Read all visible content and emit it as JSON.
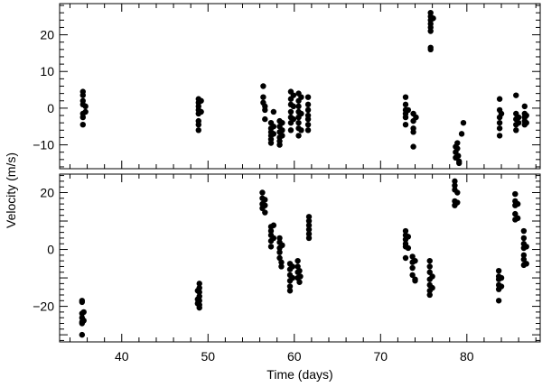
{
  "chart_data": {
    "type": "scatter",
    "xlabel": "Time (days)",
    "ylabel": "Velocity (m/s)",
    "x_ticks": [
      40,
      50,
      60,
      70,
      80
    ],
    "xlim": [
      32.8,
      88.5
    ],
    "panels": [
      {
        "name": "top",
        "ylim": [
          -16.5,
          28.5
        ],
        "y_ticks": [
          -10,
          0,
          10,
          20
        ],
        "points": [
          [
            35.5,
            4.5
          ],
          [
            35.5,
            3.5
          ],
          [
            35.5,
            2.0
          ],
          [
            35.5,
            1.0
          ],
          [
            35.5,
            -1.5
          ],
          [
            35.5,
            -2.5
          ],
          [
            35.5,
            -4.5
          ],
          [
            35.8,
            0.5
          ],
          [
            35.8,
            -1.0
          ],
          [
            48.9,
            2.5
          ],
          [
            48.9,
            1.5
          ],
          [
            48.9,
            0.5
          ],
          [
            48.9,
            -0.5
          ],
          [
            48.9,
            -1.5
          ],
          [
            48.9,
            -3.5
          ],
          [
            48.9,
            -4.5
          ],
          [
            48.9,
            -6.0
          ],
          [
            49.2,
            2.0
          ],
          [
            49.2,
            -1.0
          ],
          [
            56.4,
            6.0
          ],
          [
            56.4,
            3.0
          ],
          [
            56.4,
            1.5
          ],
          [
            56.6,
            0.5
          ],
          [
            56.6,
            -0.5
          ],
          [
            56.6,
            -3.0
          ],
          [
            57.3,
            -4.0
          ],
          [
            57.3,
            -5.5
          ],
          [
            57.3,
            -6.5
          ],
          [
            57.3,
            -7.5
          ],
          [
            57.3,
            -8.5
          ],
          [
            57.3,
            -9.5
          ],
          [
            57.6,
            -1.0
          ],
          [
            57.6,
            -5.0
          ],
          [
            57.6,
            -7.0
          ],
          [
            58.3,
            -3.5
          ],
          [
            58.3,
            -5.0
          ],
          [
            58.3,
            -6.5
          ],
          [
            58.3,
            -8.0
          ],
          [
            58.3,
            -9.0
          ],
          [
            58.3,
            -10.0
          ],
          [
            58.6,
            -4.0
          ],
          [
            58.6,
            -6.0
          ],
          [
            58.6,
            -7.5
          ],
          [
            59.6,
            4.5
          ],
          [
            59.6,
            2.5
          ],
          [
            59.6,
            1.0
          ],
          [
            59.6,
            -1.0
          ],
          [
            59.6,
            -2.5
          ],
          [
            59.6,
            -4.0
          ],
          [
            59.6,
            -6.0
          ],
          [
            59.9,
            3.5
          ],
          [
            59.9,
            0.5
          ],
          [
            59.9,
            -3.0
          ],
          [
            60.5,
            4.0
          ],
          [
            60.5,
            2.0
          ],
          [
            60.5,
            0.5
          ],
          [
            60.5,
            -1.0
          ],
          [
            60.5,
            -2.5
          ],
          [
            60.5,
            -4.0
          ],
          [
            60.5,
            -5.5
          ],
          [
            60.5,
            -7.5
          ],
          [
            60.8,
            3.0
          ],
          [
            60.8,
            -1.5
          ],
          [
            60.8,
            -6.0
          ],
          [
            61.6,
            3.0
          ],
          [
            61.6,
            1.0
          ],
          [
            61.6,
            -0.5
          ],
          [
            61.6,
            -2.0
          ],
          [
            61.6,
            -3.0
          ],
          [
            61.6,
            -4.5
          ],
          [
            61.6,
            -6.0
          ],
          [
            72.9,
            3.0
          ],
          [
            72.9,
            1.0
          ],
          [
            72.9,
            -0.5
          ],
          [
            72.9,
            -1.5
          ],
          [
            72.9,
            -2.5
          ],
          [
            72.9,
            -4.5
          ],
          [
            73.2,
            -0.5
          ],
          [
            73.8,
            -1.5
          ],
          [
            73.8,
            -3.5
          ],
          [
            73.8,
            -5.5
          ],
          [
            73.8,
            -6.5
          ],
          [
            73.8,
            -10.5
          ],
          [
            74.1,
            -2.5
          ],
          [
            75.8,
            26.0
          ],
          [
            75.8,
            25.0
          ],
          [
            75.8,
            24.0
          ],
          [
            75.8,
            23.0
          ],
          [
            75.8,
            22.0
          ],
          [
            75.8,
            21.0
          ],
          [
            75.8,
            16.5
          ],
          [
            75.8,
            16.0
          ],
          [
            76.1,
            24.5
          ],
          [
            78.7,
            -13.5
          ],
          [
            78.7,
            -12.0
          ],
          [
            78.7,
            -10.5
          ],
          [
            78.9,
            -9.5
          ],
          [
            78.9,
            -11.0
          ],
          [
            79.1,
            -14.5
          ],
          [
            79.1,
            -15.0
          ],
          [
            79.4,
            -7.0
          ],
          [
            79.6,
            -4.0
          ],
          [
            79.0,
            -13.0
          ],
          [
            83.8,
            2.5
          ],
          [
            83.8,
            -0.5
          ],
          [
            83.8,
            -2.5
          ],
          [
            83.8,
            -4.0
          ],
          [
            83.8,
            -5.5
          ],
          [
            83.8,
            -7.5
          ],
          [
            84.0,
            -1.5
          ],
          [
            85.7,
            3.5
          ],
          [
            85.7,
            -1.5
          ],
          [
            85.7,
            -3.0
          ],
          [
            85.7,
            -4.5
          ],
          [
            85.7,
            -6.0
          ],
          [
            86.0,
            -2.5
          ],
          [
            86.0,
            -4.0
          ],
          [
            86.7,
            0.5
          ],
          [
            86.7,
            -1.5
          ],
          [
            86.7,
            -2.5
          ],
          [
            86.7,
            -3.5
          ],
          [
            86.7,
            -4.5
          ],
          [
            86.9,
            -2.0
          ],
          [
            86.9,
            -4.0
          ]
        ]
      },
      {
        "name": "bottom",
        "ylim": [
          -32.5,
          26.5
        ],
        "y_ticks": [
          -20,
          0,
          20
        ],
        "points": [
          [
            35.4,
            -18.0
          ],
          [
            35.4,
            -18.5
          ],
          [
            35.4,
            -22.5
          ],
          [
            35.4,
            -24.0
          ],
          [
            35.4,
            -25.5
          ],
          [
            35.4,
            -26.0
          ],
          [
            35.4,
            -30.0
          ],
          [
            35.6,
            -22.0
          ],
          [
            35.6,
            -25.0
          ],
          [
            49.0,
            -12.0
          ],
          [
            49.0,
            -13.5
          ],
          [
            49.0,
            -15.0
          ],
          [
            49.0,
            -16.5
          ],
          [
            49.0,
            -18.0
          ],
          [
            49.0,
            -19.5
          ],
          [
            49.0,
            -20.5
          ],
          [
            48.8,
            -14.5
          ],
          [
            48.8,
            -17.5
          ],
          [
            48.8,
            -19.0
          ],
          [
            56.3,
            20.0
          ],
          [
            56.3,
            18.0
          ],
          [
            56.3,
            16.0
          ],
          [
            56.3,
            14.5
          ],
          [
            56.6,
            17.5
          ],
          [
            56.6,
            15.5
          ],
          [
            56.6,
            13.0
          ],
          [
            57.3,
            8.0
          ],
          [
            57.3,
            6.5
          ],
          [
            57.3,
            5.0
          ],
          [
            57.3,
            3.0
          ],
          [
            57.3,
            1.0
          ],
          [
            57.6,
            8.5
          ],
          [
            57.6,
            4.0
          ],
          [
            58.3,
            4.0
          ],
          [
            58.3,
            2.5
          ],
          [
            58.3,
            0.5
          ],
          [
            58.3,
            -1.0
          ],
          [
            58.3,
            -3.0
          ],
          [
            58.5,
            -4.5
          ],
          [
            58.5,
            -6.0
          ],
          [
            58.6,
            1.5
          ],
          [
            59.5,
            -5.0
          ],
          [
            59.5,
            -7.0
          ],
          [
            59.5,
            -9.0
          ],
          [
            59.5,
            -11.0
          ],
          [
            59.5,
            -13.0
          ],
          [
            59.5,
            -14.5
          ],
          [
            59.8,
            -6.0
          ],
          [
            59.8,
            -10.0
          ],
          [
            60.4,
            -4.0
          ],
          [
            60.4,
            -6.0
          ],
          [
            60.4,
            -8.0
          ],
          [
            60.4,
            -10.0
          ],
          [
            60.6,
            -11.5
          ],
          [
            60.6,
            -7.5
          ],
          [
            60.7,
            -9.5
          ],
          [
            61.7,
            11.5
          ],
          [
            61.7,
            10.0
          ],
          [
            61.7,
            8.5
          ],
          [
            61.7,
            7.0
          ],
          [
            61.7,
            5.5
          ],
          [
            61.7,
            4.0
          ],
          [
            72.9,
            6.5
          ],
          [
            72.9,
            5.0
          ],
          [
            72.9,
            3.5
          ],
          [
            72.9,
            2.0
          ],
          [
            72.9,
            1.0
          ],
          [
            72.9,
            -3.0
          ],
          [
            73.2,
            4.5
          ],
          [
            73.2,
            0.5
          ],
          [
            73.7,
            -2.5
          ],
          [
            73.7,
            -4.5
          ],
          [
            73.7,
            -6.5
          ],
          [
            73.7,
            -9.0
          ],
          [
            74.0,
            -4.0
          ],
          [
            74.0,
            -11.0
          ],
          [
            74.0,
            -10.5
          ],
          [
            75.7,
            -4.0
          ],
          [
            75.7,
            -6.0
          ],
          [
            75.7,
            -8.0
          ],
          [
            75.7,
            -10.5
          ],
          [
            75.7,
            -12.5
          ],
          [
            75.7,
            -14.5
          ],
          [
            75.7,
            -16.0
          ],
          [
            76.0,
            -9.5
          ],
          [
            76.0,
            -13.5
          ],
          [
            78.6,
            24.0
          ],
          [
            78.6,
            22.5
          ],
          [
            78.6,
            21.0
          ],
          [
            78.6,
            17.0
          ],
          [
            78.6,
            15.5
          ],
          [
            78.9,
            20.0
          ],
          [
            78.9,
            16.5
          ],
          [
            83.7,
            -7.5
          ],
          [
            83.7,
            -9.5
          ],
          [
            83.7,
            -10.5
          ],
          [
            83.7,
            -12.5
          ],
          [
            83.7,
            -14.0
          ],
          [
            83.7,
            -18.0
          ],
          [
            84.0,
            -10.0
          ],
          [
            84.0,
            -13.0
          ],
          [
            85.6,
            19.5
          ],
          [
            85.6,
            17.0
          ],
          [
            85.6,
            15.5
          ],
          [
            85.6,
            12.5
          ],
          [
            85.6,
            10.5
          ],
          [
            85.9,
            16.0
          ],
          [
            85.9,
            11.0
          ],
          [
            86.6,
            6.5
          ],
          [
            86.6,
            4.0
          ],
          [
            86.6,
            2.0
          ],
          [
            86.6,
            0.5
          ],
          [
            86.6,
            -2.0
          ],
          [
            86.6,
            -3.5
          ],
          [
            86.6,
            -5.5
          ],
          [
            86.9,
            1.0
          ],
          [
            86.9,
            -5.0
          ]
        ]
      }
    ]
  }
}
